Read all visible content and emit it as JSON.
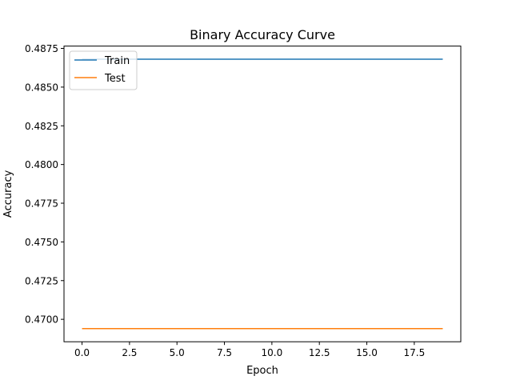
{
  "chart_data": {
    "type": "line",
    "title": "Binary Accuracy Curve",
    "xlabel": "Epoch",
    "ylabel": "Accuracy",
    "xlim": [
      -0.95,
      19.95
    ],
    "ylim": [
      0.46855,
      0.48765
    ],
    "xticks": [
      0.0,
      2.5,
      5.0,
      7.5,
      10.0,
      12.5,
      15.0,
      17.5
    ],
    "xtick_labels": [
      "0.0",
      "2.5",
      "5.0",
      "7.5",
      "10.0",
      "12.5",
      "15.0",
      "17.5"
    ],
    "yticks": [
      0.47,
      0.4725,
      0.475,
      0.4775,
      0.48,
      0.4825,
      0.485,
      0.4875
    ],
    "ytick_labels": [
      "0.4700",
      "0.4725",
      "0.4750",
      "0.4775",
      "0.4800",
      "0.4825",
      "0.4850",
      "0.4875"
    ],
    "grid": false,
    "legend_position": "top-left",
    "x": [
      0,
      1,
      2,
      3,
      4,
      5,
      6,
      7,
      8,
      9,
      10,
      11,
      12,
      13,
      14,
      15,
      16,
      17,
      18,
      19
    ],
    "series": [
      {
        "name": "Train",
        "color": "#1f77b4",
        "values": [
          0.4868,
          0.4868,
          0.4868,
          0.4868,
          0.4868,
          0.4868,
          0.4868,
          0.4868,
          0.4868,
          0.4868,
          0.4868,
          0.4868,
          0.4868,
          0.4868,
          0.4868,
          0.4868,
          0.4868,
          0.4868,
          0.4868,
          0.4868
        ]
      },
      {
        "name": "Test",
        "color": "#ff7f0e",
        "values": [
          0.4694,
          0.4694,
          0.4694,
          0.4694,
          0.4694,
          0.4694,
          0.4694,
          0.4694,
          0.4694,
          0.4694,
          0.4694,
          0.4694,
          0.4694,
          0.4694,
          0.4694,
          0.4694,
          0.4694,
          0.4694,
          0.4694,
          0.4694
        ]
      }
    ]
  }
}
